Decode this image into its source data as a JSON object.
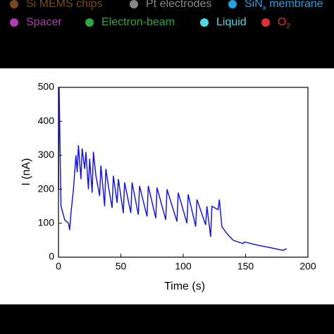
{
  "legend": [
    {
      "text": "Si MEMS chips",
      "color": "#7a4a1e"
    },
    {
      "text": "Pt electrodes",
      "color": "#888888"
    },
    {
      "text": "SiN",
      "sub": "x",
      "tail": " membrane",
      "color": "#2a9fe0"
    },
    {
      "text": "Spacer",
      "color": "#b03bb0"
    },
    {
      "text": "Electron-beam",
      "color": "#2aa84a"
    },
    {
      "text": "Liquid",
      "color": "#4fd8e0"
    },
    {
      "text": "O",
      "sub": "2",
      "color": "#e03030"
    }
  ],
  "chart_data": {
    "type": "line",
    "xlabel": "Time (s)",
    "ylabel": "I (nA)",
    "xlim": [
      0,
      200
    ],
    "ylim": [
      0,
      500
    ],
    "xticks": [
      0,
      50,
      100,
      150,
      200
    ],
    "yticks": [
      0,
      100,
      200,
      300,
      400,
      500
    ],
    "series": [
      {
        "name": "I",
        "color": "#1a1acc",
        "x": [
          0,
          0.5,
          2,
          5,
          8,
          9,
          10,
          12,
          14,
          15,
          16,
          18,
          19,
          21,
          22,
          24,
          25,
          27,
          28,
          30,
          33,
          34,
          37,
          38,
          40,
          43,
          44,
          47,
          48,
          52,
          53,
          58,
          59,
          64,
          65,
          71,
          72,
          78,
          79,
          86,
          87,
          95,
          96,
          103,
          104,
          110,
          111,
          118,
          119,
          122,
          123,
          128,
          129,
          131,
          135,
          140,
          148,
          149,
          160,
          170,
          180,
          183
        ],
        "values": [
          200,
          500,
          150,
          110,
          100,
          80,
          130,
          200,
          300,
          250,
          330,
          230,
          320,
          260,
          310,
          200,
          290,
          190,
          310,
          240,
          180,
          270,
          150,
          260,
          210,
          145,
          240,
          160,
          230,
          130,
          220,
          130,
          220,
          125,
          210,
          120,
          210,
          115,
          205,
          110,
          200,
          105,
          190,
          100,
          185,
          90,
          170,
          95,
          150,
          60,
          150,
          140,
          170,
          90,
          70,
          50,
          40,
          45,
          35,
          28,
          20,
          25
        ]
      }
    ]
  }
}
